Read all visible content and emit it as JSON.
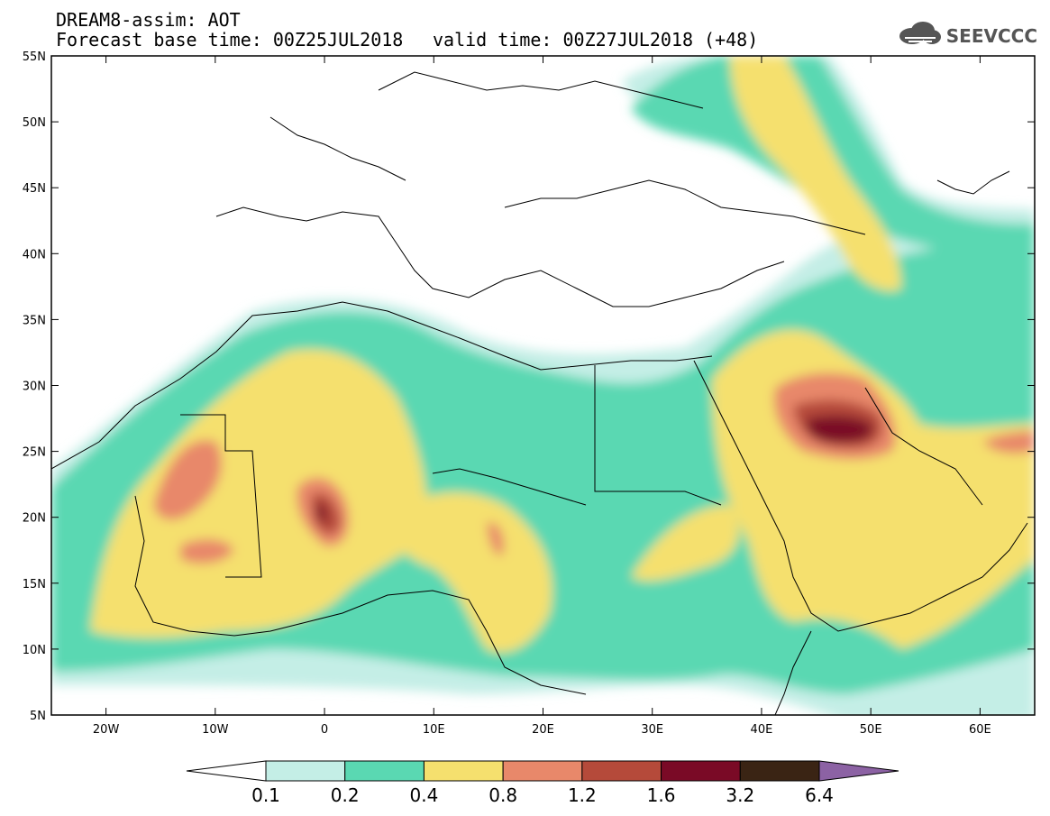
{
  "header": {
    "title": "DREAM8-assim: AOT",
    "base_time_label": "Forecast base time: 00Z25JUL2018",
    "valid_time_label": "valid time: 00Z27JUL2018 (+48)"
  },
  "logo": {
    "text": "SEEVCCC",
    "icon": "cloud-icon"
  },
  "map": {
    "lon_ticks": [
      "20W",
      "10W",
      "0",
      "10E",
      "20E",
      "30E",
      "40E",
      "50E",
      "60E"
    ],
    "lat_ticks": [
      "55N",
      "50N",
      "45N",
      "40N",
      "35N",
      "30N",
      "25N",
      "20N",
      "15N",
      "10N",
      "5N"
    ],
    "extent": {
      "lon": [
        -25,
        65
      ],
      "lat": [
        5,
        55
      ]
    }
  },
  "colorbar": {
    "levels": [
      "0.1",
      "0.2",
      "0.4",
      "0.8",
      "1.2",
      "1.6",
      "3.2",
      "6.4"
    ],
    "colors": [
      "#ffffff",
      "#c4eee6",
      "#5ad8b2",
      "#f5e06e",
      "#e8886a",
      "#b54a3a",
      "#7a0a26",
      "#3a2414",
      "#8c62a4"
    ]
  }
}
